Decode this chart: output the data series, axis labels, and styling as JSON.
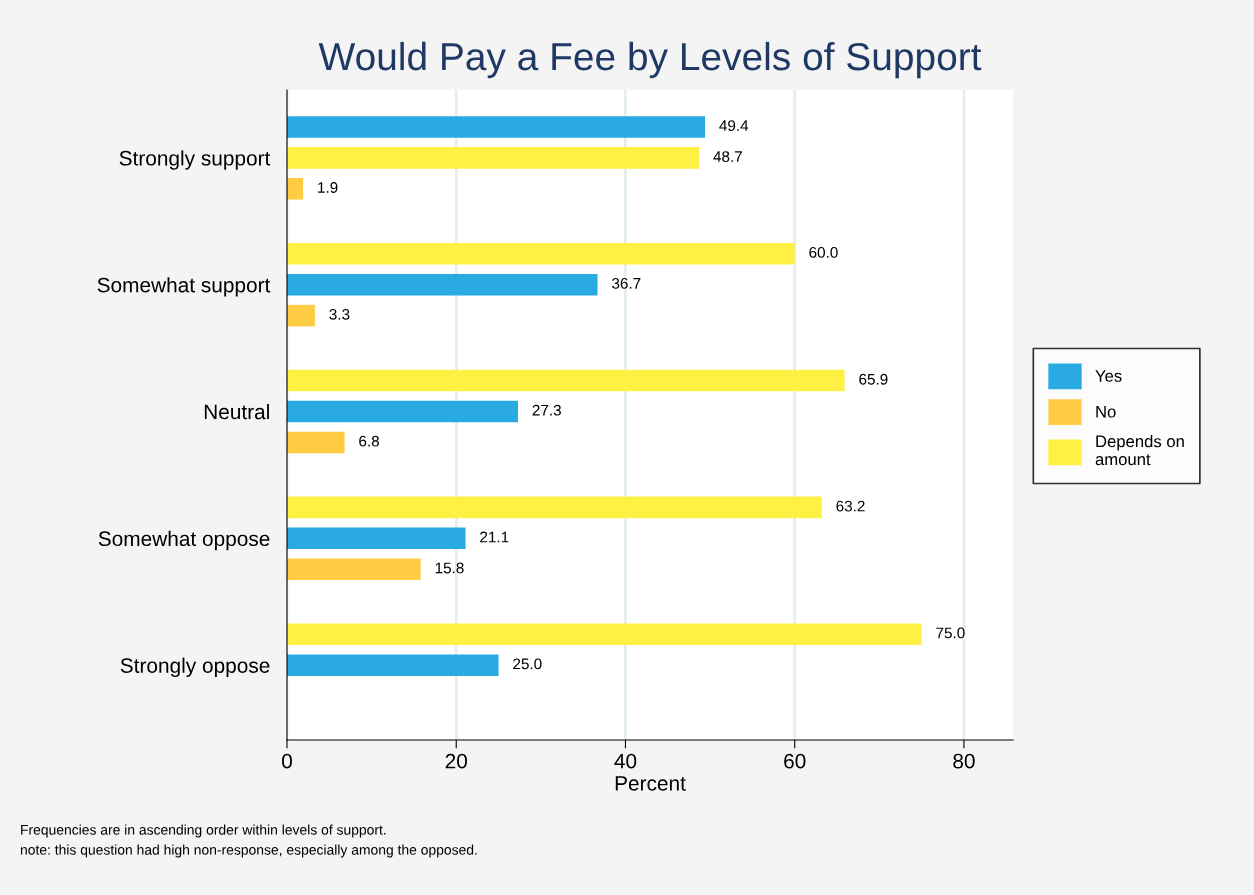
{
  "chart_data": {
    "type": "bar",
    "orientation": "horizontal",
    "title": "Would Pay a Fee by Levels of Support",
    "xlabel": "Percent",
    "categories": [
      "Strongly support",
      "Somewhat support",
      "Neutral",
      "Somewhat oppose",
      "Strongly oppose"
    ],
    "series": [
      {
        "name": "Yes",
        "color": "#29abe2",
        "values": [
          49.4,
          36.7,
          27.3,
          21.1,
          25.0
        ],
        "value_labels": [
          "49.4",
          "36.7",
          "27.3",
          "21.1",
          "25.0"
        ]
      },
      {
        "name": "No",
        "color": "#ffcc44",
        "values": [
          1.9,
          3.3,
          6.8,
          15.8,
          null
        ],
        "value_labels": [
          "1.9",
          "3.3",
          "6.8",
          "15.8",
          null
        ]
      },
      {
        "name": "Depends on amount",
        "color": "#fff143",
        "values": [
          48.7,
          60.0,
          65.9,
          63.2,
          75.0
        ],
        "value_labels": [
          "48.7",
          "60.0",
          "65.9",
          "63.2",
          "75.0"
        ]
      }
    ],
    "xlim": [
      0,
      85.8
    ],
    "xticks": [
      0,
      20,
      40,
      60,
      80
    ],
    "grid": "x",
    "legend": "right",
    "annotations": [
      "Frequencies are in ascending order within levels of support.",
      "note: this question had high non-response, especially among the opposed."
    ]
  }
}
